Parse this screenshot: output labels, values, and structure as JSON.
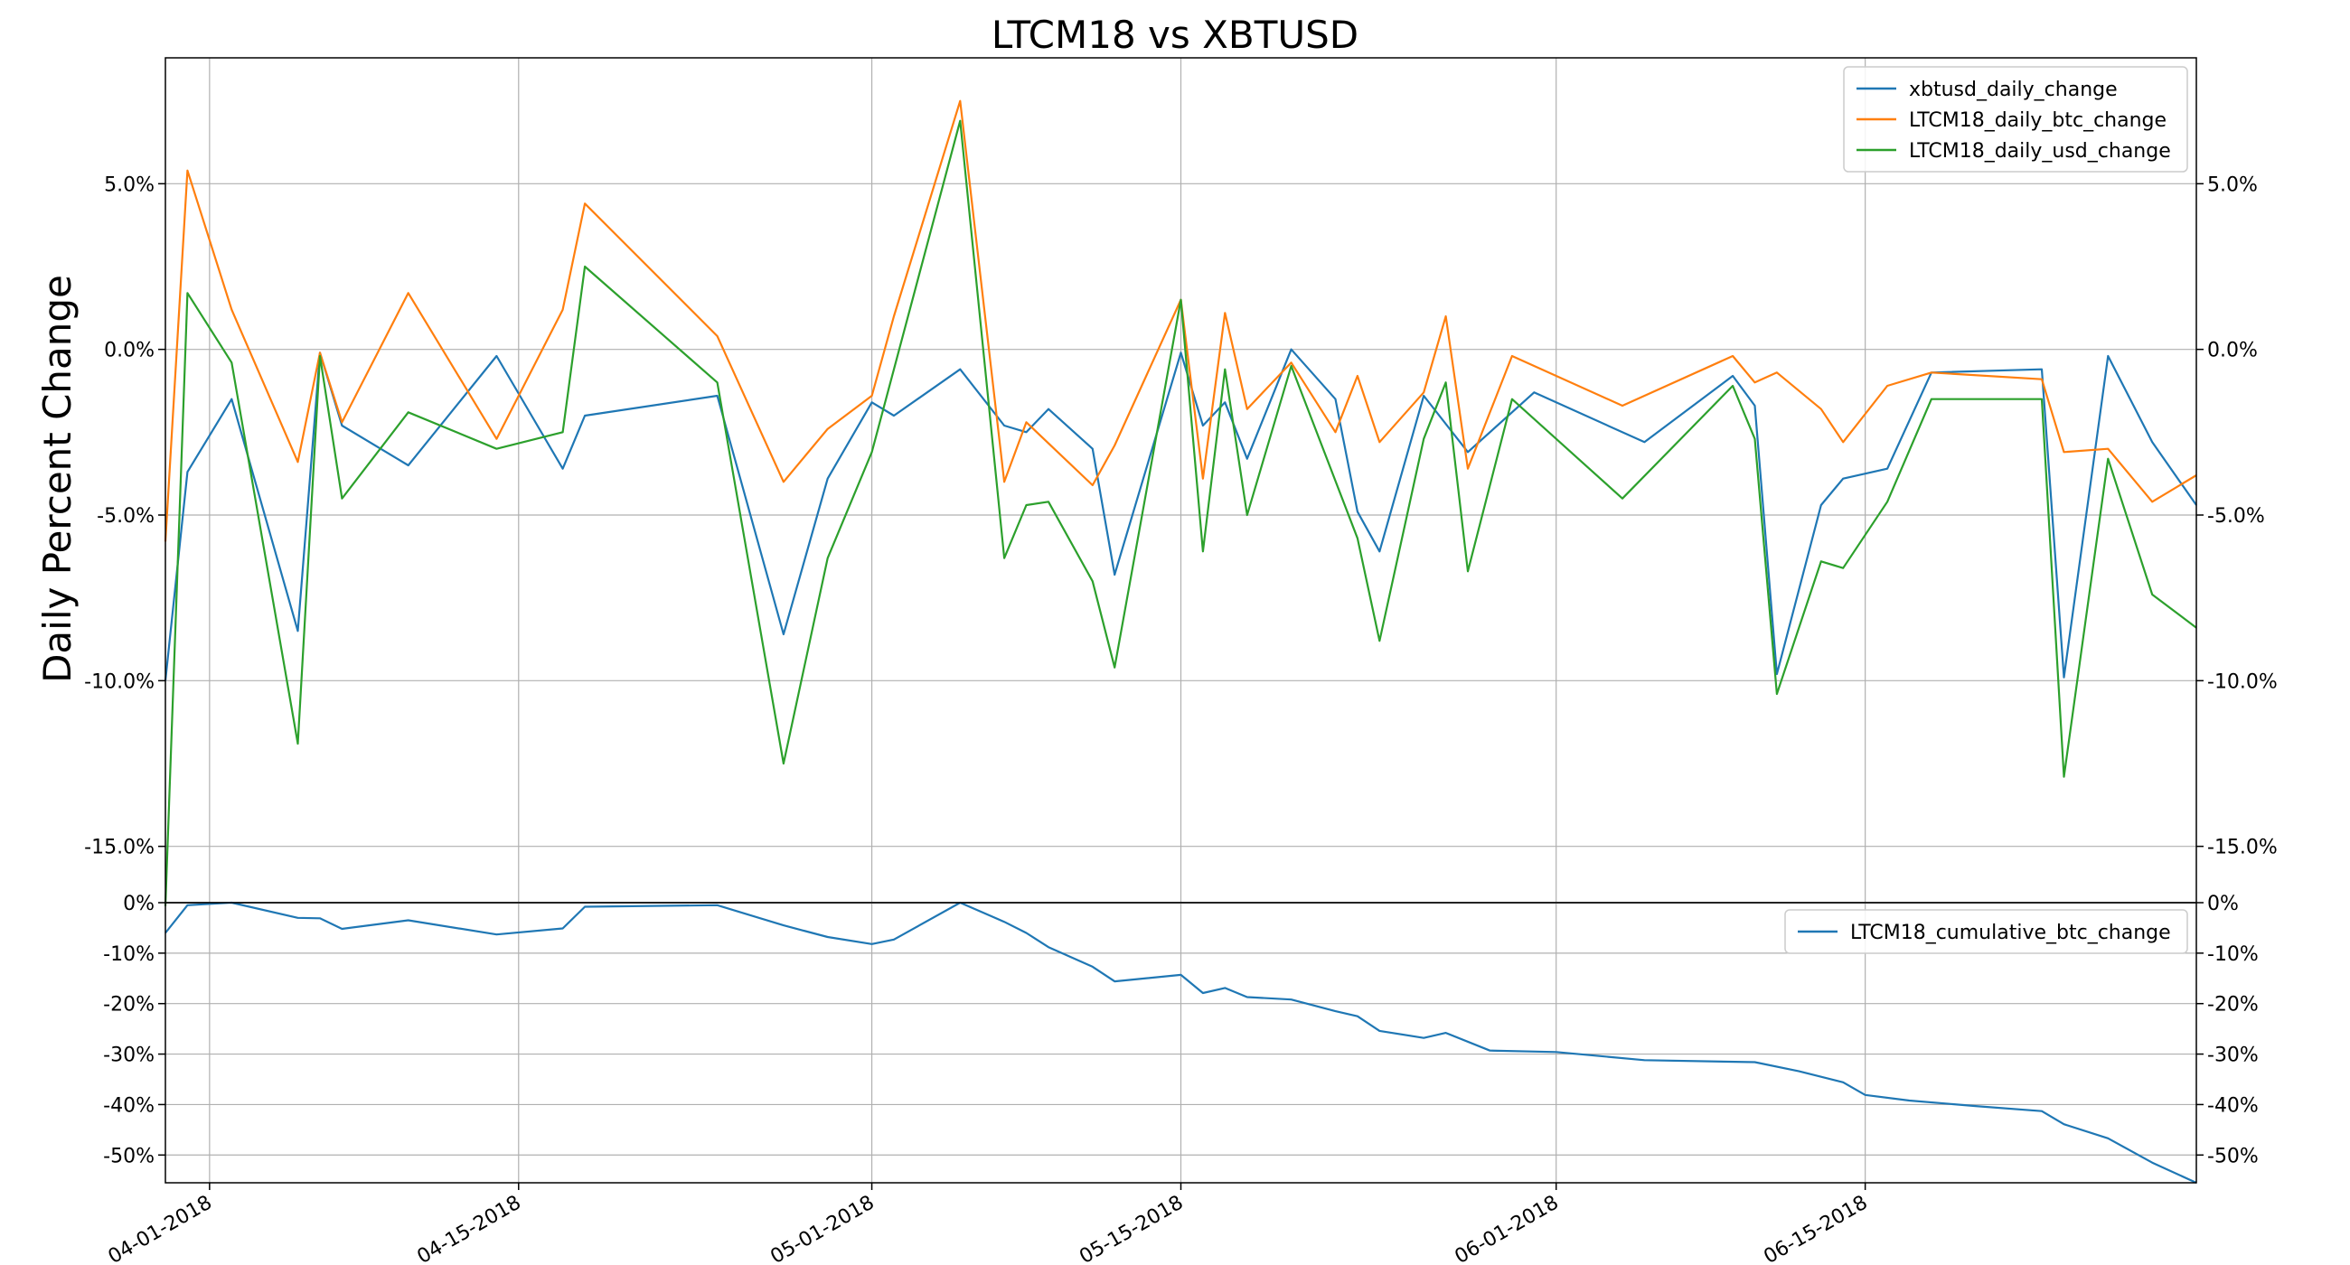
{
  "chart_data": [
    {
      "type": "line",
      "title": "LTCM18 vs XBTUSD",
      "ylabel": "Daily Percent Change",
      "xlabel": "",
      "grid": true,
      "legend_position": "top-right",
      "ylim": [
        -0.167,
        0.088
      ],
      "yticks": [
        0.05,
        0.0,
        -0.05,
        -0.1,
        -0.15
      ],
      "ytick_labels": [
        "5.0%",
        "0.0%",
        "-5.0%",
        "-10.0%",
        "-15.0%"
      ],
      "x": [
        "2018-03-30",
        "2018-03-31",
        "2018-04-01",
        "2018-04-02",
        "2018-04-03",
        "2018-04-04",
        "2018-04-05",
        "2018-04-06",
        "2018-04-07",
        "2018-04-08",
        "2018-04-09",
        "2018-04-10",
        "2018-04-11",
        "2018-04-12",
        "2018-04-13",
        "2018-04-14",
        "2018-04-15",
        "2018-04-16",
        "2018-04-17",
        "2018-04-18",
        "2018-04-19",
        "2018-04-20",
        "2018-04-21",
        "2018-04-22",
        "2018-04-23",
        "2018-04-24",
        "2018-04-25",
        "2018-04-26",
        "2018-04-27",
        "2018-04-28",
        "2018-04-29",
        "2018-04-30",
        "2018-05-01",
        "2018-05-02",
        "2018-05-03",
        "2018-05-04",
        "2018-05-05",
        "2018-05-06",
        "2018-05-07",
        "2018-05-08",
        "2018-05-09",
        "2018-05-10",
        "2018-05-11",
        "2018-05-12",
        "2018-05-13",
        "2018-05-14",
        "2018-05-15",
        "2018-05-16",
        "2018-05-17",
        "2018-05-18",
        "2018-05-19",
        "2018-05-20",
        "2018-05-21",
        "2018-05-22",
        "2018-05-23",
        "2018-05-24",
        "2018-05-25",
        "2018-05-26",
        "2018-05-27",
        "2018-05-28",
        "2018-05-29",
        "2018-05-30",
        "2018-05-31",
        "2018-06-01",
        "2018-06-02",
        "2018-06-03",
        "2018-06-04",
        "2018-06-05",
        "2018-06-06",
        "2018-06-07",
        "2018-06-08",
        "2018-06-09",
        "2018-06-10",
        "2018-06-11",
        "2018-06-12",
        "2018-06-13",
        "2018-06-14",
        "2018-06-15",
        "2018-06-16",
        "2018-06-17",
        "2018-06-18",
        "2018-06-19",
        "2018-06-20",
        "2018-06-21",
        "2018-06-22",
        "2018-06-23",
        "2018-06-24",
        "2018-06-25",
        "2018-06-26",
        "2018-06-27",
        "2018-06-28",
        "2018-06-29",
        "2018-06-30"
      ],
      "series": [
        {
          "name": "xbtusd_daily_change",
          "color": "#1f77b4",
          "points": [
            [
              "2018-03-30",
              -0.1
            ],
            [
              "2018-03-31",
              -0.037
            ],
            [
              "2018-04-02",
              -0.015
            ],
            [
              "2018-04-05",
              -0.085
            ],
            [
              "2018-04-06",
              -0.001
            ],
            [
              "2018-04-07",
              -0.023
            ],
            [
              "2018-04-10",
              -0.035
            ],
            [
              "2018-04-14",
              -0.002
            ],
            [
              "2018-04-17",
              -0.036
            ],
            [
              "2018-04-18",
              -0.02
            ],
            [
              "2018-04-24",
              -0.014
            ],
            [
              "2018-04-27",
              -0.086
            ],
            [
              "2018-04-29",
              -0.039
            ],
            [
              "2018-05-01",
              -0.016
            ],
            [
              "2018-05-02",
              -0.02
            ],
            [
              "2018-05-05",
              -0.006
            ],
            [
              "2018-05-07",
              -0.023
            ],
            [
              "2018-05-08",
              -0.025
            ],
            [
              "2018-05-09",
              -0.018
            ],
            [
              "2018-05-11",
              -0.03
            ],
            [
              "2018-05-12",
              -0.068
            ],
            [
              "2018-05-15",
              -0.001
            ],
            [
              "2018-05-16",
              -0.023
            ],
            [
              "2018-05-17",
              -0.016
            ],
            [
              "2018-05-18",
              -0.033
            ],
            [
              "2018-05-20",
              -0.0
            ],
            [
              "2018-05-22",
              -0.015
            ],
            [
              "2018-05-23",
              -0.049
            ],
            [
              "2018-05-24",
              -0.061
            ],
            [
              "2018-05-26",
              -0.014
            ],
            [
              "2018-05-28",
              -0.031
            ],
            [
              "2018-05-31",
              -0.013
            ],
            [
              "2018-06-05",
              -0.028
            ],
            [
              "2018-06-09",
              -0.008
            ],
            [
              "2018-06-10",
              -0.017
            ],
            [
              "2018-06-11",
              -0.098
            ],
            [
              "2018-06-13",
              -0.047
            ],
            [
              "2018-06-14",
              -0.039
            ],
            [
              "2018-06-16",
              -0.036
            ],
            [
              "2018-06-18",
              -0.007
            ],
            [
              "2018-06-23",
              -0.006
            ],
            [
              "2018-06-24",
              -0.099
            ],
            [
              "2018-06-26",
              -0.002
            ],
            [
              "2018-06-28",
              -0.028
            ],
            [
              "2018-06-30",
              -0.047
            ]
          ]
        },
        {
          "name": "LTCM18_daily_btc_change",
          "color": "#ff7f0e",
          "points": [
            [
              "2018-03-30",
              -0.058
            ],
            [
              "2018-03-31",
              0.054
            ],
            [
              "2018-04-02",
              0.012
            ],
            [
              "2018-04-05",
              -0.034
            ],
            [
              "2018-04-06",
              -0.001
            ],
            [
              "2018-04-07",
              -0.022
            ],
            [
              "2018-04-10",
              0.017
            ],
            [
              "2018-04-14",
              -0.027
            ],
            [
              "2018-04-17",
              0.012
            ],
            [
              "2018-04-18",
              0.044
            ],
            [
              "2018-04-24",
              0.004
            ],
            [
              "2018-04-27",
              -0.04
            ],
            [
              "2018-04-29",
              -0.024
            ],
            [
              "2018-05-01",
              -0.014
            ],
            [
              "2018-05-02",
              0.01
            ],
            [
              "2018-05-05",
              0.075
            ],
            [
              "2018-05-07",
              -0.04
            ],
            [
              "2018-05-08",
              -0.022
            ],
            [
              "2018-05-11",
              -0.041
            ],
            [
              "2018-05-12",
              -0.029
            ],
            [
              "2018-05-15",
              0.015
            ],
            [
              "2018-05-16",
              -0.039
            ],
            [
              "2018-05-17",
              0.011
            ],
            [
              "2018-05-18",
              -0.018
            ],
            [
              "2018-05-20",
              -0.004
            ],
            [
              "2018-05-22",
              -0.025
            ],
            [
              "2018-05-23",
              -0.008
            ],
            [
              "2018-05-24",
              -0.028
            ],
            [
              "2018-05-26",
              -0.013
            ],
            [
              "2018-05-27",
              0.01
            ],
            [
              "2018-05-28",
              -0.036
            ],
            [
              "2018-05-30",
              -0.002
            ],
            [
              "2018-06-04",
              -0.017
            ],
            [
              "2018-06-09",
              -0.002
            ],
            [
              "2018-06-10",
              -0.01
            ],
            [
              "2018-06-11",
              -0.007
            ],
            [
              "2018-06-13",
              -0.018
            ],
            [
              "2018-06-14",
              -0.028
            ],
            [
              "2018-06-16",
              -0.011
            ],
            [
              "2018-06-18",
              -0.007
            ],
            [
              "2018-06-23",
              -0.009
            ],
            [
              "2018-06-24",
              -0.031
            ],
            [
              "2018-06-26",
              -0.03
            ],
            [
              "2018-06-28",
              -0.046
            ],
            [
              "2018-06-30",
              -0.038
            ]
          ]
        },
        {
          "name": "LTCM18_daily_usd_change",
          "color": "#2ca02c",
          "points": [
            [
              "2018-03-30",
              -0.168
            ],
            [
              "2018-03-31",
              0.017
            ],
            [
              "2018-04-02",
              -0.004
            ],
            [
              "2018-04-05",
              -0.119
            ],
            [
              "2018-04-06",
              -0.002
            ],
            [
              "2018-04-07",
              -0.045
            ],
            [
              "2018-04-10",
              -0.019
            ],
            [
              "2018-04-14",
              -0.03
            ],
            [
              "2018-04-17",
              -0.025
            ],
            [
              "2018-04-18",
              0.025
            ],
            [
              "2018-04-24",
              -0.01
            ],
            [
              "2018-04-27",
              -0.125
            ],
            [
              "2018-04-29",
              -0.063
            ],
            [
              "2018-05-01",
              -0.031
            ],
            [
              "2018-05-05",
              0.069
            ],
            [
              "2018-05-07",
              -0.063
            ],
            [
              "2018-05-08",
              -0.047
            ],
            [
              "2018-05-09",
              -0.046
            ],
            [
              "2018-05-11",
              -0.07
            ],
            [
              "2018-05-12",
              -0.096
            ],
            [
              "2018-05-15",
              0.015
            ],
            [
              "2018-05-16",
              -0.061
            ],
            [
              "2018-05-17",
              -0.006
            ],
            [
              "2018-05-18",
              -0.05
            ],
            [
              "2018-05-20",
              -0.005
            ],
            [
              "2018-05-23",
              -0.057
            ],
            [
              "2018-05-24",
              -0.088
            ],
            [
              "2018-05-26",
              -0.027
            ],
            [
              "2018-05-27",
              -0.01
            ],
            [
              "2018-05-28",
              -0.067
            ],
            [
              "2018-05-30",
              -0.015
            ],
            [
              "2018-06-04",
              -0.045
            ],
            [
              "2018-06-09",
              -0.011
            ],
            [
              "2018-06-10",
              -0.027
            ],
            [
              "2018-06-11",
              -0.104
            ],
            [
              "2018-06-13",
              -0.064
            ],
            [
              "2018-06-14",
              -0.066
            ],
            [
              "2018-06-16",
              -0.046
            ],
            [
              "2018-06-18",
              -0.015
            ],
            [
              "2018-06-23",
              -0.015
            ],
            [
              "2018-06-24",
              -0.129
            ],
            [
              "2018-06-26",
              -0.033
            ],
            [
              "2018-06-28",
              -0.074
            ],
            [
              "2018-06-30",
              -0.084
            ]
          ]
        }
      ]
    },
    {
      "type": "line",
      "title": "",
      "ylabel": "",
      "grid": true,
      "legend_position": "top-right",
      "ylim": [
        -0.555,
        0.0
      ],
      "yticks": [
        0.0,
        -0.1,
        -0.2,
        -0.3,
        -0.4,
        -0.5
      ],
      "ytick_labels": [
        "0%",
        "-10%",
        "-20%",
        "-30%",
        "-40%",
        "-50%"
      ],
      "xtick_dates": [
        "2018-04-01",
        "2018-04-15",
        "2018-05-01",
        "2018-05-15",
        "2018-06-01",
        "2018-06-15"
      ],
      "xtick_labels": [
        "04-01-2018",
        "04-15-2018",
        "05-01-2018",
        "05-15-2018",
        "06-01-2018",
        "06-15-2018"
      ],
      "series": [
        {
          "name": "LTCM18_cumulative_btc_change",
          "color": "#1f77b4",
          "points": [
            [
              "2018-03-30",
              -0.06
            ],
            [
              "2018-03-31",
              -0.005
            ],
            [
              "2018-04-02",
              0.0
            ],
            [
              "2018-04-05",
              -0.03
            ],
            [
              "2018-04-06",
              -0.031
            ],
            [
              "2018-04-07",
              -0.052
            ],
            [
              "2018-04-10",
              -0.035
            ],
            [
              "2018-04-14",
              -0.063
            ],
            [
              "2018-04-17",
              -0.051
            ],
            [
              "2018-04-18",
              -0.008
            ],
            [
              "2018-04-24",
              -0.005
            ],
            [
              "2018-04-27",
              -0.045
            ],
            [
              "2018-04-29",
              -0.068
            ],
            [
              "2018-05-01",
              -0.082
            ],
            [
              "2018-05-02",
              -0.073
            ],
            [
              "2018-05-05",
              0.0
            ],
            [
              "2018-05-07",
              -0.038
            ],
            [
              "2018-05-08",
              -0.06
            ],
            [
              "2018-05-09",
              -0.088
            ],
            [
              "2018-05-11",
              -0.127
            ],
            [
              "2018-05-12",
              -0.156
            ],
            [
              "2018-05-15",
              -0.143
            ],
            [
              "2018-05-16",
              -0.179
            ],
            [
              "2018-05-17",
              -0.169
            ],
            [
              "2018-05-18",
              -0.187
            ],
            [
              "2018-05-20",
              -0.192
            ],
            [
              "2018-05-22",
              -0.215
            ],
            [
              "2018-05-23",
              -0.225
            ],
            [
              "2018-05-24",
              -0.254
            ],
            [
              "2018-05-26",
              -0.268
            ],
            [
              "2018-05-27",
              -0.258
            ],
            [
              "2018-05-29",
              -0.293
            ],
            [
              "2018-06-01",
              -0.296
            ],
            [
              "2018-06-05",
              -0.312
            ],
            [
              "2018-06-10",
              -0.316
            ],
            [
              "2018-06-12",
              -0.334
            ],
            [
              "2018-06-14",
              -0.356
            ],
            [
              "2018-06-15",
              -0.381
            ],
            [
              "2018-06-17",
              -0.392
            ],
            [
              "2018-06-20",
              -0.403
            ],
            [
              "2018-06-23",
              -0.413
            ],
            [
              "2018-06-24",
              -0.439
            ],
            [
              "2018-06-26",
              -0.467
            ],
            [
              "2018-06-28",
              -0.515
            ],
            [
              "2018-06-30",
              -0.555
            ]
          ]
        }
      ]
    }
  ]
}
